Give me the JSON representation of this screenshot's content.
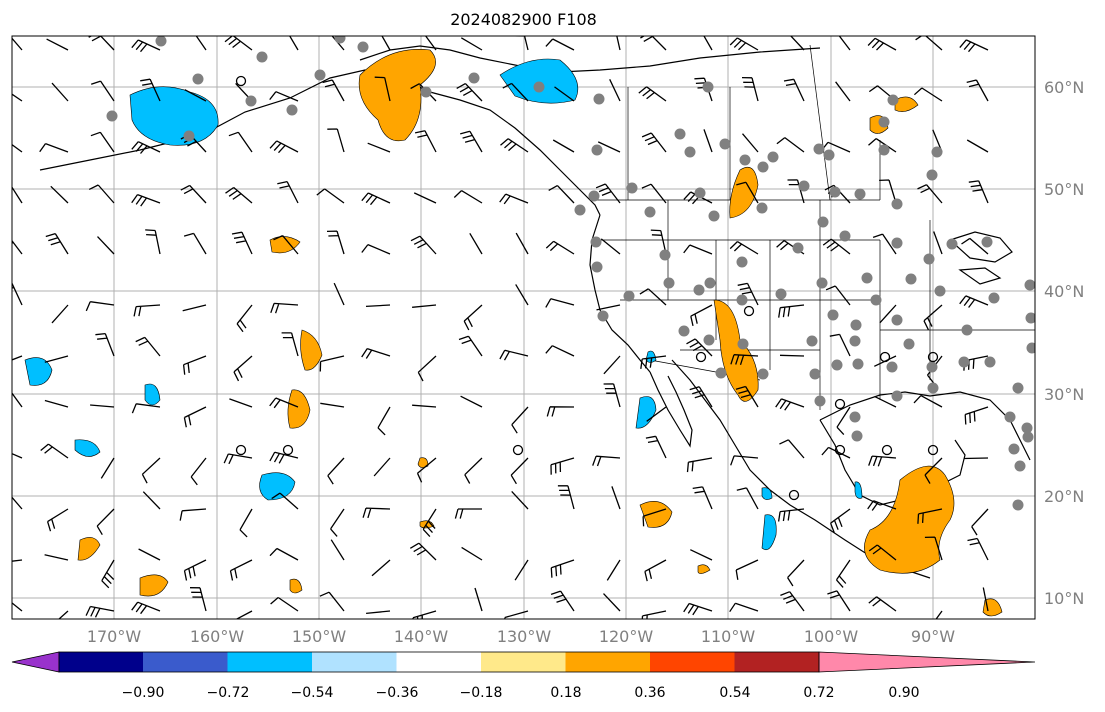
{
  "title": "2024082900 F108",
  "map": {
    "lat_labels": [
      "60°N",
      "50°N",
      "40°N",
      "30°N",
      "20°N",
      "10°N"
    ],
    "lon_labels": [
      "170°W",
      "160°W",
      "150°W",
      "140°W",
      "130°W",
      "120°W",
      "110°W",
      "100°W",
      "90°W"
    ]
  },
  "colorbar": {
    "colors": [
      "#9932cc",
      "#00008b",
      "#3a5bcc",
      "#00bfff",
      "#b0e2ff",
      "#ffffff",
      "#ffe98a",
      "#ffa500",
      "#ff4500",
      "#b22222",
      "#ff88aa"
    ],
    "tick_labels": [
      "−0.90",
      "−0.72",
      "−0.54",
      "−0.36",
      "−0.18",
      "0.18",
      "0.36",
      "0.54",
      "0.72",
      "0.90"
    ]
  },
  "legend_colors": {
    "orange": "#ffa500",
    "blue": "#00bfff",
    "station_fill": "#808080",
    "grid": "#b0b0b0"
  }
}
